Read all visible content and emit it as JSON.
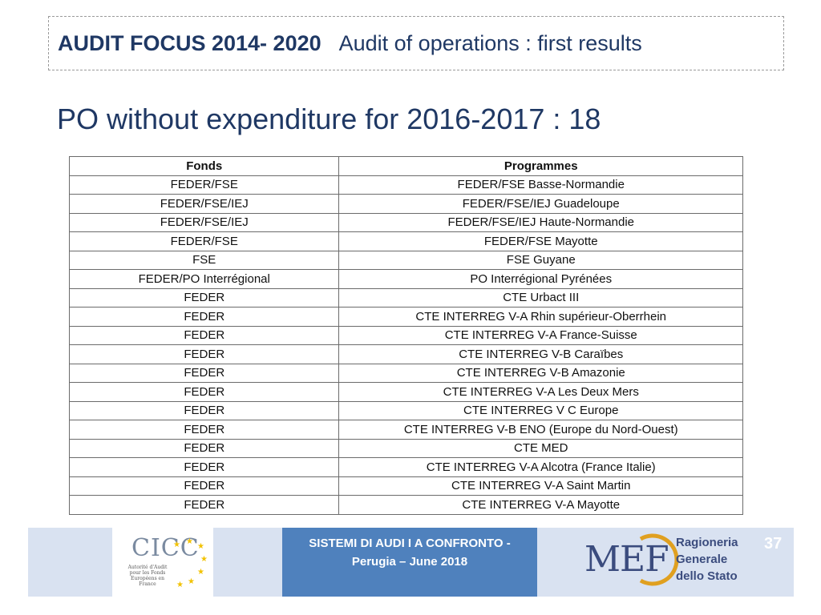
{
  "header": {
    "title_bold": "AUDIT FOCUS  2014- 2020",
    "title_rest": "Audit of operations  : first results"
  },
  "subtitle": "PO without expenditure for  2016-2017 : 18",
  "table": {
    "headers": [
      "Fonds",
      "Programmes"
    ],
    "rows": [
      [
        "FEDER/FSE",
        "FEDER/FSE Basse-Normandie"
      ],
      [
        "FEDER/FSE/IEJ",
        "FEDER/FSE/IEJ Guadeloupe"
      ],
      [
        "FEDER/FSE/IEJ",
        "FEDER/FSE/IEJ Haute-Normandie"
      ],
      [
        "FEDER/FSE",
        "FEDER/FSE Mayotte"
      ],
      [
        "FSE",
        "FSE Guyane"
      ],
      [
        "FEDER/PO Interrégional",
        "PO Interrégional Pyrénées"
      ],
      [
        "FEDER",
        "CTE Urbact III"
      ],
      [
        "FEDER",
        "CTE INTERREG V-A Rhin supérieur-Oberrhein"
      ],
      [
        "FEDER",
        "CTE INTERREG V-A France-Suisse"
      ],
      [
        "FEDER",
        "CTE INTERREG V-B Caraïbes"
      ],
      [
        "FEDER",
        "CTE INTERREG V-B Amazonie"
      ],
      [
        "FEDER",
        "CTE INTERREG V-A Les Deux Mers"
      ],
      [
        "FEDER",
        "CTE INTERREG V C Europe"
      ],
      [
        "FEDER",
        "CTE INTERREG V-B ENO (Europe du Nord-Ouest)"
      ],
      [
        "FEDER",
        "CTE MED"
      ],
      [
        "FEDER",
        "CTE INTERREG V-A Alcotra (France Italie)"
      ],
      [
        "FEDER",
        "CTE INTERREG V-A Saint Martin"
      ],
      [
        "FEDER",
        "CTE INTERREG V-A Mayotte"
      ]
    ]
  },
  "footer": {
    "cicc_logo_text": "CICC",
    "cicc_fine_print": "Autorité d'Audit pour les Fonds Européens en France",
    "conference_line1": "SISTEMI DI AUDI I A CONFRONTO  -",
    "conference_line2": "Perugia – June 2018",
    "mef_logo_text": "MEF",
    "rgs_line1": "Ragioneria",
    "rgs_line2": "Generale",
    "rgs_line3": "dello Stato",
    "page_number": "37"
  },
  "colors": {
    "title_blue": "#1f3864",
    "footer_light": "#d9e2f1",
    "footer_accent": "#4f81bd"
  }
}
